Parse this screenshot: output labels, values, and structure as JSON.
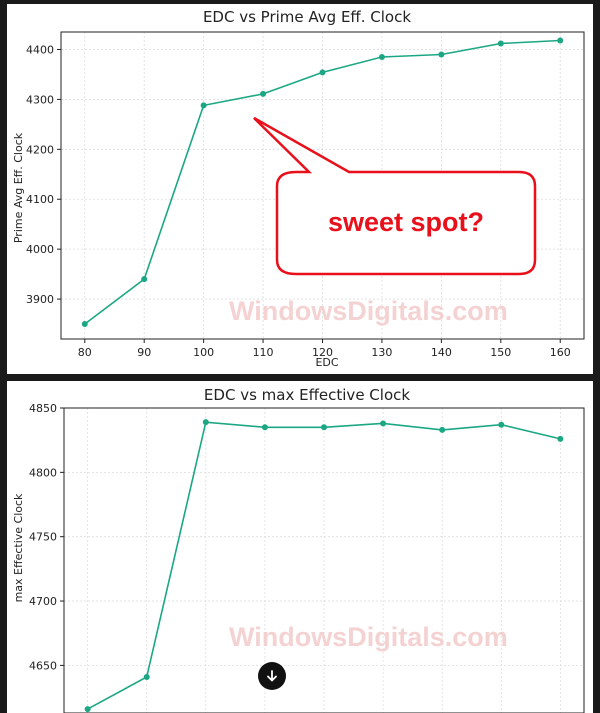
{
  "watermark": "WindowsDigitals.com",
  "callout": {
    "text": "sweet spot?"
  },
  "scroll_down_icon": "arrow-down-icon",
  "colors": {
    "series": "#1ba784",
    "callout_border": "#e8101a",
    "callout_text": "#e8101a"
  },
  "chart_data": [
    {
      "type": "line",
      "title": "EDC vs Prime Avg Eff. Clock",
      "xlabel": "EDC",
      "ylabel": "Prime Avg Eff. Clock",
      "x": [
        80,
        90,
        100,
        110,
        120,
        130,
        140,
        150,
        160
      ],
      "series": [
        {
          "values": [
            3850,
            3940,
            4288,
            4311,
            4354,
            4385,
            4390,
            4412,
            4418
          ]
        }
      ],
      "xlim": [
        76,
        164
      ],
      "ylim": [
        3820,
        4435
      ],
      "xticks": [
        80,
        90,
        100,
        110,
        120,
        130,
        140,
        150,
        160
      ],
      "yticks": [
        3900,
        4000,
        4100,
        4200,
        4300,
        4400
      ],
      "grid": true
    },
    {
      "type": "line",
      "title": "EDC vs max Effective Clock",
      "xlabel": "",
      "ylabel": "max Effective Clock",
      "x": [
        80,
        90,
        100,
        110,
        120,
        130,
        140,
        150,
        160
      ],
      "series": [
        {
          "values": [
            4616,
            4641,
            4839,
            4835,
            4835,
            4838,
            4833,
            4837,
            4826
          ]
        }
      ],
      "xlim": [
        76,
        164
      ],
      "ylim": [
        4613,
        4850
      ],
      "xticks": [
        80,
        90,
        100,
        110,
        120,
        130,
        140,
        150,
        160
      ],
      "yticks": [
        4650,
        4700,
        4750,
        4800,
        4850
      ],
      "grid": true
    }
  ]
}
